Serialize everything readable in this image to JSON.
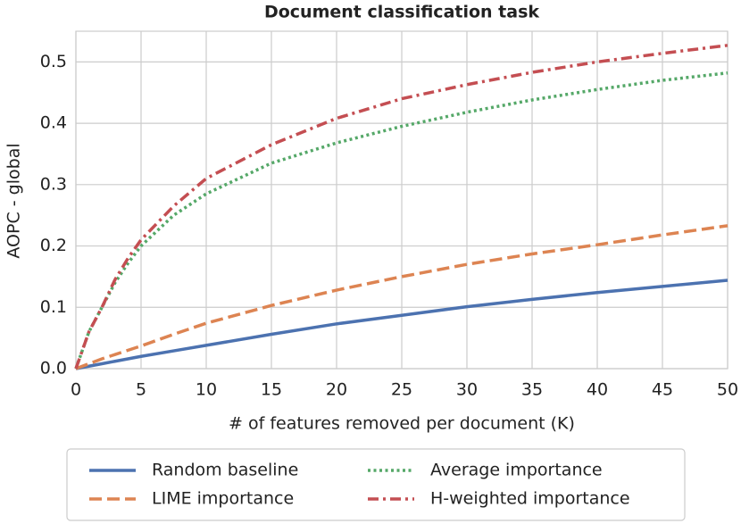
{
  "chart_data": {
    "type": "line",
    "title": "Document classification task",
    "x_label": "# of features removed per document (K)",
    "y_label": "AOPC - global",
    "x": [
      0,
      1,
      2,
      3,
      4,
      5,
      7.5,
      10,
      15,
      20,
      25,
      30,
      35,
      40,
      45,
      50
    ],
    "series": [
      {
        "name": "Random baseline",
        "color": "#4c72b0",
        "linestyle": "solid",
        "values": [
          0,
          0.004,
          0.008,
          0.012,
          0.016,
          0.02,
          0.029,
          0.038,
          0.056,
          0.073,
          0.087,
          0.101,
          0.113,
          0.124,
          0.134,
          0.144
        ]
      },
      {
        "name": "LIME importance",
        "color": "#dd8452",
        "linestyle": "dashed",
        "values": [
          0,
          0.008,
          0.016,
          0.023,
          0.03,
          0.037,
          0.056,
          0.074,
          0.103,
          0.128,
          0.15,
          0.17,
          0.187,
          0.202,
          0.218,
          0.233
        ]
      },
      {
        "name": "Average importance",
        "color": "#55a868",
        "linestyle": "dotted",
        "values": [
          0,
          0.06,
          0.1,
          0.14,
          0.172,
          0.2,
          0.25,
          0.285,
          0.335,
          0.368,
          0.395,
          0.418,
          0.438,
          0.455,
          0.47,
          0.482
        ]
      },
      {
        "name": "H-weighted importance",
        "color": "#c44e52",
        "linestyle": "dashdot",
        "values": [
          0,
          0.06,
          0.1,
          0.145,
          0.18,
          0.21,
          0.265,
          0.31,
          0.365,
          0.408,
          0.44,
          0.463,
          0.483,
          0.5,
          0.514,
          0.527
        ]
      }
    ],
    "xlim": [
      0,
      50
    ],
    "xticks": [
      0,
      5,
      10,
      15,
      20,
      25,
      30,
      35,
      40,
      45,
      50
    ],
    "ylim": [
      0,
      0.55
    ],
    "yticks": [
      {
        "value": 0,
        "label": "0.0"
      },
      0.1,
      0.2,
      0.3,
      0.4,
      0.5
    ],
    "grid": true,
    "legend": "below"
  }
}
